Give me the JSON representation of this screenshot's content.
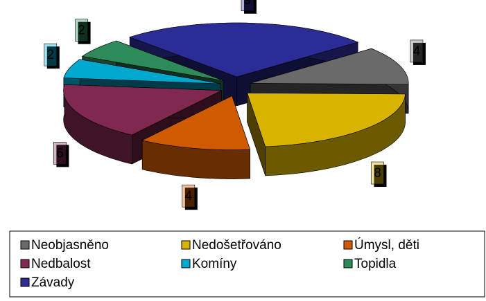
{
  "chart_data": {
    "type": "pie3d",
    "categories": [
      "Neobjasněno",
      "Nedošetřováno",
      "Úmysl, děti",
      "Nedbalost",
      "Komíny",
      "Topidla",
      "Závady"
    ],
    "values": [
      4,
      8,
      4,
      6,
      2,
      2,
      9
    ],
    "colors": [
      "#6a6a6a",
      "#d8b400",
      "#d05a00",
      "#80284f",
      "#00a8d0",
      "#2e8a5a",
      "#2c2c96"
    ],
    "legend": "bottom"
  }
}
